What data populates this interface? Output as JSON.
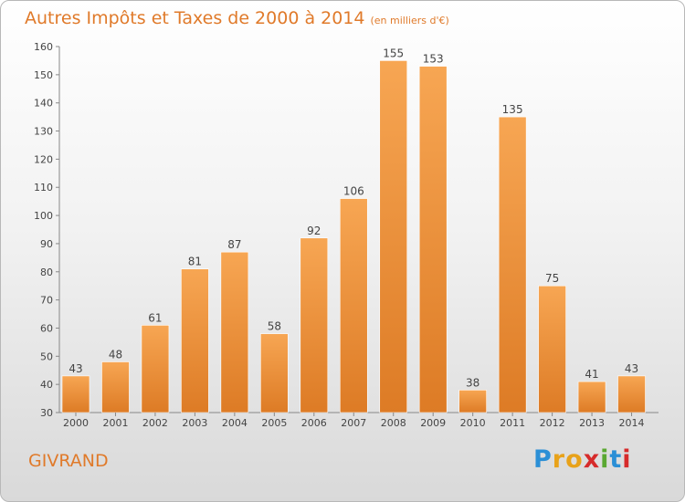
{
  "title": "Autres Impôts et Taxes de 2000 à 2014",
  "unit": "(en milliers d'€)",
  "place": "GIVRAND",
  "brand": "Proxiti",
  "colors": {
    "accent": "#e07a2a",
    "bar_top": "#f7a653",
    "bar_bottom": "#dd7b25"
  },
  "chart_data": {
    "type": "bar",
    "title": "Autres Impôts et Taxes de 2000 à 2014",
    "subtitle": "(en milliers d'€)",
    "xlabel": "",
    "ylabel": "",
    "categories": [
      "2000",
      "2001",
      "2002",
      "2003",
      "2004",
      "2005",
      "2006",
      "2007",
      "2008",
      "2009",
      "2010",
      "2011",
      "2012",
      "2013",
      "2014"
    ],
    "values": [
      43,
      48,
      61,
      81,
      87,
      58,
      92,
      106,
      155,
      153,
      38,
      135,
      75,
      41,
      43
    ],
    "ylim": [
      30,
      160
    ],
    "yticks": [
      30,
      40,
      50,
      60,
      70,
      80,
      90,
      100,
      110,
      120,
      130,
      140,
      150,
      160
    ],
    "grid": false,
    "legend": "none"
  }
}
